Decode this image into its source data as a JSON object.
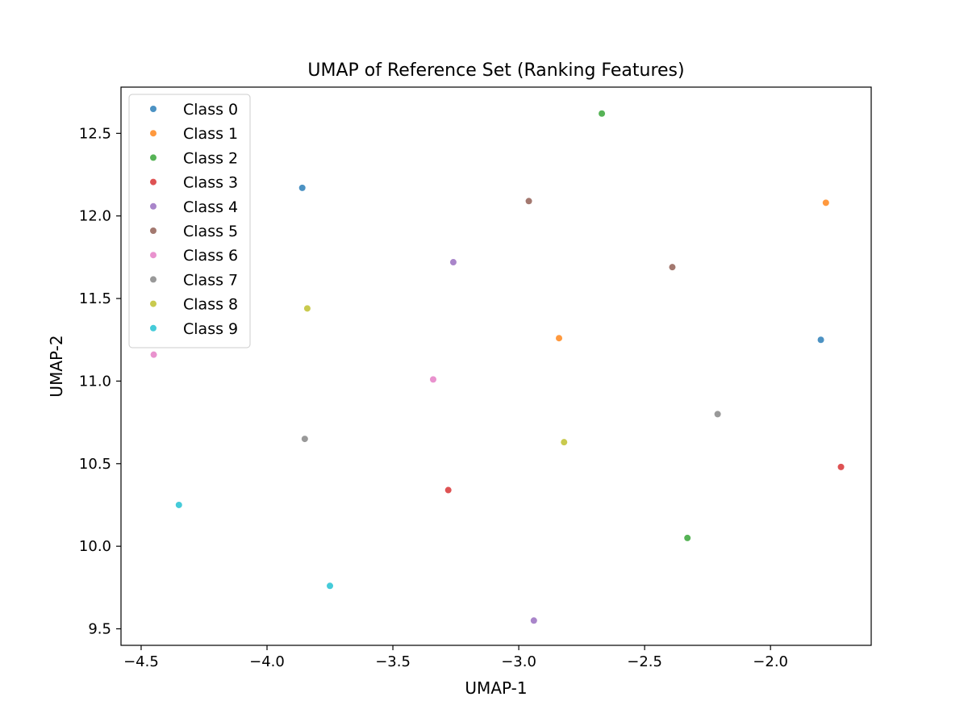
{
  "chart_data": {
    "type": "scatter",
    "title": "UMAP of Reference Set (Ranking Features)",
    "xlabel": "UMAP-1",
    "ylabel": "UMAP-2",
    "xlim": [
      -4.58,
      -1.6
    ],
    "ylim": [
      9.4,
      12.78
    ],
    "xticks": [
      -4.5,
      -4.0,
      -3.5,
      -3.0,
      -2.5,
      -2.0
    ],
    "xtick_labels": [
      "−4.5",
      "−4.0",
      "−3.5",
      "−3.0",
      "−2.5",
      "−2.0"
    ],
    "yticks": [
      9.5,
      10.0,
      10.5,
      11.0,
      11.5,
      12.0,
      12.5
    ],
    "ytick_labels": [
      "9.5",
      "10.0",
      "10.5",
      "11.0",
      "11.5",
      "12.0",
      "12.5"
    ],
    "grid": false,
    "legend": "upper-left",
    "series": [
      {
        "name": "Class 0",
        "color": "#1f77b4",
        "points": [
          [
            -3.86,
            12.17
          ],
          [
            -1.8,
            11.25
          ]
        ]
      },
      {
        "name": "Class 1",
        "color": "#ff7f0e",
        "points": [
          [
            -1.78,
            12.08
          ],
          [
            -2.84,
            11.26
          ]
        ]
      },
      {
        "name": "Class 2",
        "color": "#2ca02c",
        "points": [
          [
            -2.67,
            12.62
          ],
          [
            -2.33,
            10.05
          ]
        ]
      },
      {
        "name": "Class 3",
        "color": "#d62728",
        "points": [
          [
            -1.72,
            10.48
          ],
          [
            -3.28,
            10.34
          ]
        ]
      },
      {
        "name": "Class 4",
        "color": "#9467bd",
        "points": [
          [
            -3.26,
            11.72
          ],
          [
            -2.94,
            9.55
          ]
        ]
      },
      {
        "name": "Class 5",
        "color": "#8c564b",
        "points": [
          [
            -2.96,
            12.09
          ],
          [
            -2.39,
            11.69
          ]
        ]
      },
      {
        "name": "Class 6",
        "color": "#e377c2",
        "points": [
          [
            -4.45,
            11.16
          ],
          [
            -3.34,
            11.01
          ]
        ]
      },
      {
        "name": "Class 7",
        "color": "#7f7f7f",
        "points": [
          [
            -3.85,
            10.65
          ],
          [
            -2.21,
            10.8
          ]
        ]
      },
      {
        "name": "Class 8",
        "color": "#bcbd22",
        "points": [
          [
            -3.84,
            11.44
          ],
          [
            -2.82,
            10.63
          ]
        ]
      },
      {
        "name": "Class 9",
        "color": "#17becf",
        "points": [
          [
            -4.35,
            10.25
          ],
          [
            -3.75,
            9.76
          ]
        ]
      }
    ]
  }
}
